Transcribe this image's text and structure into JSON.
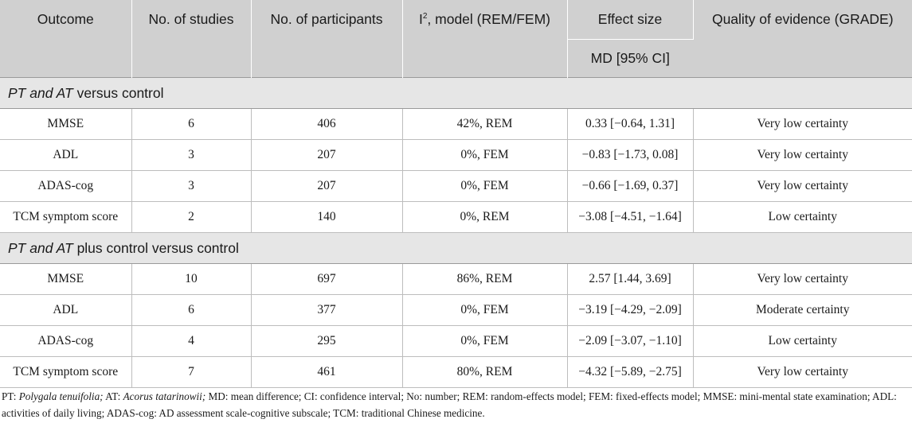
{
  "header": {
    "outcome": "Outcome",
    "studies": "No. of studies",
    "participants": "No. of participants",
    "i2_prefix": "I",
    "i2_sup": "2",
    "i2_rest": ", model (REM/FEM)",
    "effect_size": "Effect size",
    "effect_unit": "MD [95% CI]",
    "quality": "Quality of evidence (GRADE)"
  },
  "sections": [
    {
      "title_italic": "PT and AT",
      "title_rest": " versus control",
      "rows": [
        {
          "outcome": "MMSE",
          "studies": "6",
          "participants": "406",
          "model": "42%, REM",
          "effect": "0.33 [−0.64, 1.31]",
          "quality": "Very low certainty"
        },
        {
          "outcome": "ADL",
          "studies": "3",
          "participants": "207",
          "model": "0%, FEM",
          "effect": "−0.83 [−1.73, 0.08]",
          "quality": "Very low certainty"
        },
        {
          "outcome": "ADAS-cog",
          "studies": "3",
          "participants": "207",
          "model": "0%, FEM",
          "effect": "−0.66 [−1.69, 0.37]",
          "quality": "Very low certainty"
        },
        {
          "outcome": "TCM symptom score",
          "studies": "2",
          "participants": "140",
          "model": "0%, REM",
          "effect": "−3.08 [−4.51, −1.64]",
          "quality": "Low certainty"
        }
      ]
    },
    {
      "title_italic": "PT and AT",
      "title_rest": " plus control versus control",
      "rows": [
        {
          "outcome": "MMSE",
          "studies": "10",
          "participants": "697",
          "model": "86%, REM",
          "effect": "2.57 [1.44, 3.69]",
          "quality": "Very low certainty"
        },
        {
          "outcome": "ADL",
          "studies": "6",
          "participants": "377",
          "model": "0%, FEM",
          "effect": "−3.19 [−4.29, −2.09]",
          "quality": "Moderate certainty"
        },
        {
          "outcome": "ADAS-cog",
          "studies": "4",
          "participants": "295",
          "model": "0%, FEM",
          "effect": "−2.09 [−3.07, −1.10]",
          "quality": "Low certainty"
        },
        {
          "outcome": "TCM symptom score",
          "studies": "7",
          "participants": "461",
          "model": "80%, REM",
          "effect": "−4.32 [−5.89, −2.75]",
          "quality": "Very low certainty"
        }
      ]
    }
  ],
  "footnote": {
    "pt_label": "PT: ",
    "pt_italic": "Polygala tenuifolia;",
    "at_label": " AT: ",
    "at_italic": "Acorus tatarinowii;",
    "rest": " MD: mean difference; CI: confidence interval; No: number; REM: random-effects model; FEM: fixed-effects model; MMSE: mini-mental state examination; ADL: activities of daily living; ADAS-cog: AD assessment scale-cognitive subscale; TCM: traditional Chinese medicine."
  }
}
